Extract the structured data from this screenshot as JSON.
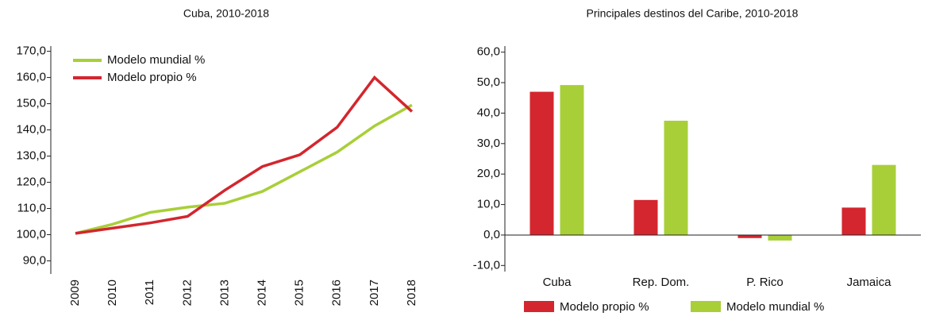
{
  "chart_data": [
    {
      "type": "line",
      "title": "Cuba, 2010-2018",
      "categories": [
        "2009",
        "2010",
        "2011",
        "2012",
        "2013",
        "2014",
        "2015",
        "2016",
        "2017",
        "2018"
      ],
      "series": [
        {
          "name": "Modelo mundial %",
          "color": "#a8cf38",
          "values": [
            100.5,
            104,
            108.5,
            110.5,
            112,
            116.5,
            124,
            131.5,
            141.5,
            149.5
          ]
        },
        {
          "name": "Modelo propio %",
          "color": "#d3262e",
          "values": [
            100.5,
            102.5,
            104.5,
            107,
            117,
            126,
            130.5,
            141,
            160,
            147
          ]
        }
      ],
      "ylim": [
        85,
        172
      ],
      "yticks": [
        {
          "value": 90,
          "label": "90,0"
        },
        {
          "value": 100,
          "label": "100,0"
        },
        {
          "value": 110,
          "label": "110,0"
        },
        {
          "value": 120,
          "label": "120,0"
        },
        {
          "value": 130,
          "label": "130,0"
        },
        {
          "value": 140,
          "label": "140,0"
        },
        {
          "value": 150,
          "label": "150,0"
        },
        {
          "value": 160,
          "label": "160,0"
        },
        {
          "value": 170,
          "label": "170,0"
        }
      ],
      "legend": "upper left"
    },
    {
      "type": "bar",
      "title": "Principales destinos del Caribe, 2010-2018",
      "categories": [
        "Cuba",
        "Rep. Dom.",
        "P. Rico",
        "Jamaica"
      ],
      "series": [
        {
          "name": "Modelo propio %",
          "color": "#d3262e",
          "values": [
            47,
            11.5,
            -1,
            9
          ]
        },
        {
          "name": "Modelo mundial %",
          "color": "#a8cf38",
          "values": [
            49.2,
            37.5,
            -1.8,
            23
          ]
        }
      ],
      "ylim": [
        -12,
        62
      ],
      "yticks": [
        {
          "value": -10,
          "label": "-10,0"
        },
        {
          "value": 0,
          "label": "0,0"
        },
        {
          "value": 10,
          "label": "10,0"
        },
        {
          "value": 20,
          "label": "20,0"
        },
        {
          "value": 30,
          "label": "30,0"
        },
        {
          "value": 40,
          "label": "40,0"
        },
        {
          "value": 50,
          "label": "50,0"
        },
        {
          "value": 60,
          "label": "60,0"
        }
      ],
      "legend": "bottom"
    }
  ]
}
